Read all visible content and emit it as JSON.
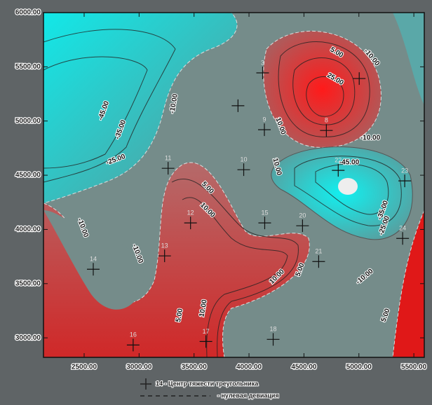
{
  "chart_data": {
    "type": "contour",
    "xlim": [
      2130,
      5595
    ],
    "ylim": [
      2820,
      6000
    ],
    "xticks": [
      {
        "value": 2500,
        "label": "2500.00"
      },
      {
        "value": 3000,
        "label": "3000.00"
      },
      {
        "value": 3500,
        "label": "3500.00"
      },
      {
        "value": 4000,
        "label": "4000.00"
      },
      {
        "value": 4500,
        "label": "4500.00"
      },
      {
        "value": 5000,
        "label": "5000.00"
      },
      {
        "value": 5500,
        "label": "5500.00"
      }
    ],
    "yticks": [
      {
        "value": 3000,
        "label": "3000.00"
      },
      {
        "value": 3500,
        "label": "3500.00"
      },
      {
        "value": 4000,
        "label": "4000.00"
      },
      {
        "value": 4500,
        "label": "4500.00"
      },
      {
        "value": 5000,
        "label": "5000.00"
      },
      {
        "value": 5500,
        "label": "5500.00"
      },
      {
        "value": 6000,
        "label": "6000.00"
      }
    ],
    "points": {
      "labels": [
        "3",
        "8",
        "9",
        "10",
        "11",
        "12",
        "13",
        "14",
        "15",
        "16",
        "17",
        "18",
        "20",
        "21",
        "22",
        "23",
        "24",
        null,
        null
      ],
      "x": [
        4124,
        4704,
        4140,
        3952,
        3264,
        3468,
        3232,
        2583,
        4143,
        2946,
        3608,
        4220,
        4487,
        4634,
        4812,
        5417,
        5398,
        3900,
        5003
      ],
      "y": [
        5444,
        4913,
        4920,
        4551,
        4564,
        4060,
        3756,
        3633,
        4060,
        2934,
        2966,
        2986,
        4034,
        3704,
        4545,
        4448,
        3917,
        5141,
        5392
      ]
    },
    "contour_labels": [
      "-45.00",
      "-35.00",
      "-25.00",
      "-10.00",
      "-10.00",
      "-10.00",
      "5.00",
      "10.00",
      "10.00",
      "5.00",
      "25.00",
      "-10.00",
      "10.00",
      "-10.00",
      "-45.00",
      "-35.00",
      "-25.00",
      "10.00",
      "5.00",
      "5.00",
      "10.00",
      "-10.00",
      "5.00"
    ],
    "legend": {
      "marker_text": "14 - Центр тяжести треугольника",
      "line_text": "- нулевая девиация"
    }
  }
}
